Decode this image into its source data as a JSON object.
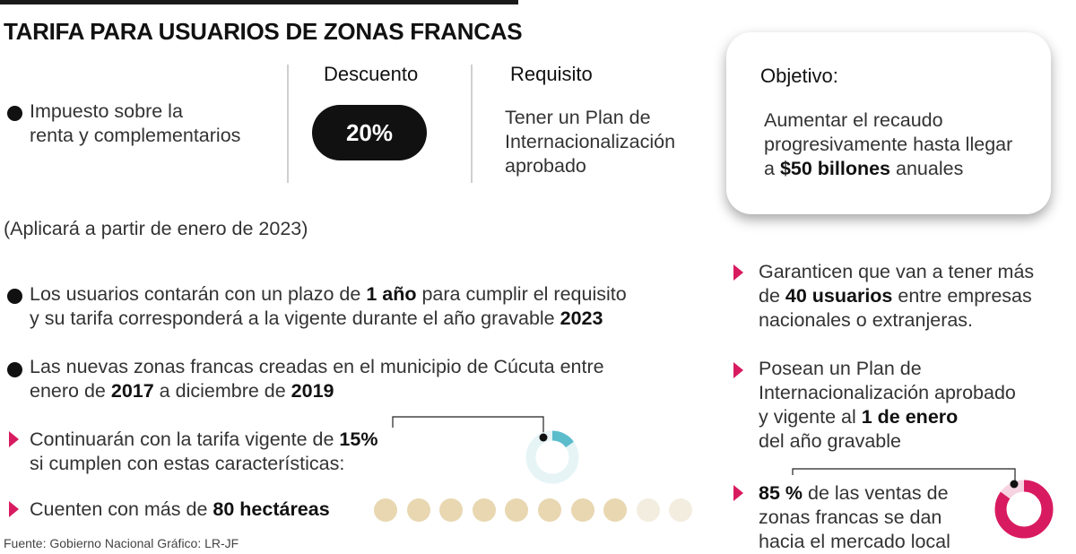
{
  "title": "TARIFA PARA USUARIOS DE ZONAS FRANCAS",
  "table": {
    "header_discount": "Descuento",
    "header_requirement": "Requisito",
    "row_tax": [
      "Impuesto sobre la",
      "renta y complementarios"
    ],
    "discount_value": "20%",
    "requirement": [
      "Tener un Plan de",
      "Internacionalización",
      "aprobado"
    ]
  },
  "objective": {
    "label": "Objetivo:",
    "line1": "Aumentar el recaudo",
    "line2": "progresivamente hasta llegar",
    "line3_pre": "a ",
    "line3_bold": "$50 billones",
    "line3_post": " anuales"
  },
  "applies_note": "(Aplicará a partir de enero de 2023)",
  "bullets": {
    "users": {
      "l1_pre": "Los usuarios contarán con un plazo de ",
      "l1_bold": "1 año",
      "l1_post": " para cumplir el requisito",
      "l2_pre": "y su tarifa corresponderá a la vigente durante el año gravable ",
      "l2_bold": "2023"
    },
    "cucuta": {
      "l1": "Las nuevas zonas francas creadas en el municipio de Cúcuta entre",
      "l2_pre": "enero de ",
      "l2_bold1": "2017",
      "l2_mid": " a diciembre de ",
      "l2_bold2": "2019"
    },
    "continue": {
      "l1_pre": "Continuarán con la tarifa vigente de ",
      "l1_bold": "15%",
      "l2": "si cumplen con estas características:"
    },
    "hectares": {
      "pre": "Cuenten con más de ",
      "bold": "80 hectáreas"
    }
  },
  "right": {
    "guarantee": {
      "l1": "Garanticen que van a tener más",
      "l2_pre": "de ",
      "l2_bold": "40 usuarios",
      "l2_post": " entre empresas",
      "l3": "nacionales o extranjeras."
    },
    "plan": {
      "l1": "Posean un Plan de",
      "l2": "Internacionalización aprobado",
      "l3_pre": "y vigente al ",
      "l3_bold": "1 de enero",
      "l4": "del año gravable"
    },
    "sales": {
      "l1_bold": "85 %",
      "l1_post": " de las ventas de",
      "l2": "zonas francas se dan",
      "l3": "hacia el mercado local"
    }
  },
  "source": "Fuente: Gobierno Nacional  Gráfico: LR-JF",
  "charts": {
    "donut_15": {
      "fraction": 0.15,
      "color": "#5bbccc",
      "track": "#e6f4f6"
    },
    "donut_85": {
      "fraction": 0.85,
      "color": "#d81b60",
      "track": "#f6d3e1"
    },
    "hectare_dots": {
      "filled": 8,
      "total": 10,
      "filled_color": "#e8d7b0",
      "empty_color": "#f3ede0"
    }
  },
  "colors": {
    "accent": "#d81b60",
    "text": "#333333",
    "dark": "#111111"
  }
}
